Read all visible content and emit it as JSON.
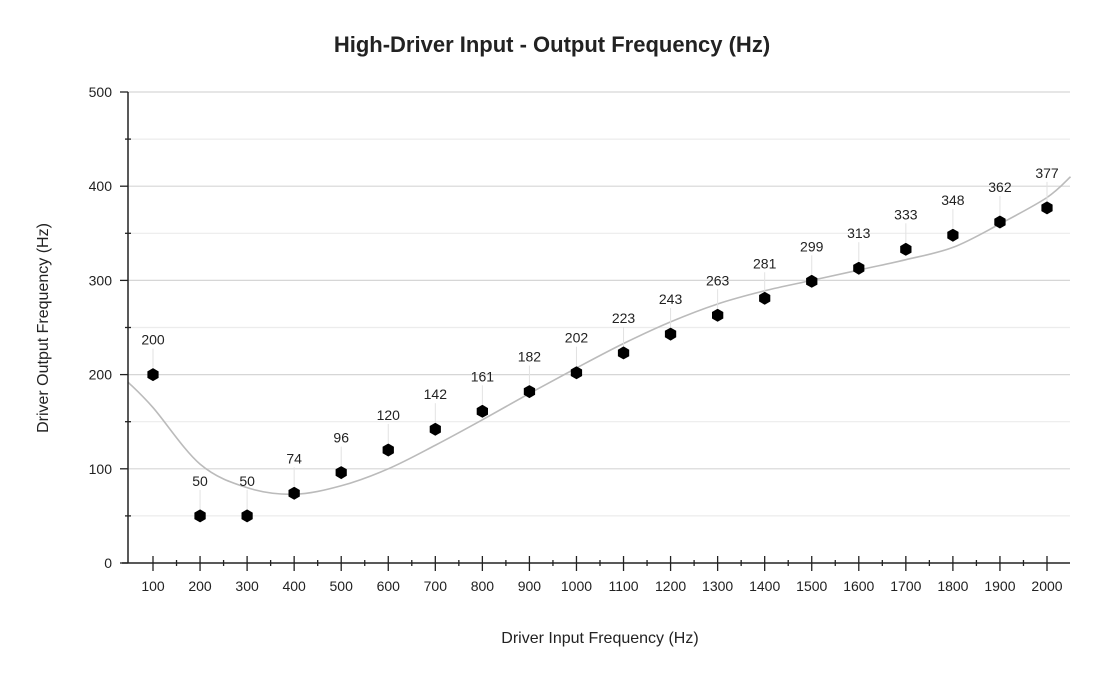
{
  "chart_data": {
    "type": "scatter",
    "title": "High-Driver Input - Output Frequency (Hz)",
    "xlabel": "Driver Input Frequency (Hz)",
    "ylabel": "Driver Output Frequency (Hz)",
    "xlim": [
      47,
      2050
    ],
    "ylim": [
      0,
      500
    ],
    "x_ticks": [
      100,
      200,
      300,
      400,
      500,
      600,
      700,
      800,
      900,
      1000,
      1100,
      1200,
      1300,
      1400,
      1500,
      1600,
      1700,
      1800,
      1900,
      2000
    ],
    "y_ticks": [
      0,
      100,
      200,
      300,
      400,
      500
    ],
    "grid": true,
    "legend": "none",
    "series": [
      {
        "name": "Output Frequency",
        "x": [
          100,
          200,
          300,
          400,
          500,
          600,
          700,
          800,
          900,
          1000,
          1100,
          1200,
          1300,
          1400,
          1500,
          1600,
          1700,
          1800,
          1900,
          2000
        ],
        "y": [
          200,
          50,
          50,
          74,
          96,
          120,
          142,
          161,
          182,
          202,
          223,
          243,
          263,
          281,
          299,
          313,
          333,
          348,
          362,
          377
        ],
        "labels": [
          "200",
          "50",
          "50",
          "74",
          "96",
          "120",
          "142",
          "161",
          "182",
          "202",
          "223",
          "243",
          "263",
          "281",
          "299",
          "313",
          "333",
          "348",
          "362",
          "377"
        ],
        "color": "#000000"
      }
    ],
    "trendline": {
      "type": "polynomial",
      "color": "#bbbbbb",
      "x": [
        47,
        100,
        200,
        300,
        400,
        500,
        600,
        700,
        800,
        900,
        1000,
        1100,
        1200,
        1300,
        1400,
        1500,
        1600,
        1700,
        1800,
        1900,
        2000,
        2050
      ],
      "y": [
        192,
        165,
        105,
        80,
        73,
        82,
        100,
        125,
        152,
        180,
        207,
        233,
        256,
        275,
        289,
        300,
        311,
        322,
        335,
        360,
        388,
        410
      ]
    }
  }
}
